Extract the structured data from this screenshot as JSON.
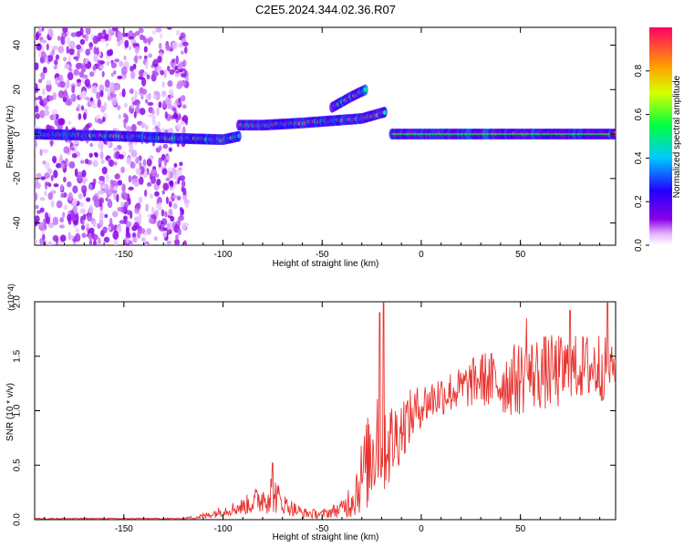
{
  "title": "C2E5.2024.344.02.36.R07",
  "chart_data": [
    {
      "type": "heatmap",
      "title": "C2E5.2024.344.02.36.R07",
      "xlabel": "Height of straight line (km)",
      "ylabel": "Frequency (Hz)",
      "xlim": [
        -195,
        98
      ],
      "ylim": [
        -50,
        48
      ],
      "xticks": [
        -150,
        -100,
        -50,
        0,
        50
      ],
      "yticks": [
        -40,
        -20,
        0,
        20,
        40
      ],
      "colorbar": {
        "label": "Normalized spectral amplitude",
        "range": [
          0.0,
          1.0
        ],
        "ticks": [
          0.0,
          0.2,
          0.4,
          0.6,
          0.8
        ]
      },
      "features": [
        {
          "name": "noise",
          "x_range": [
            -195,
            -118
          ],
          "freq_range": [
            -50,
            48
          ]
        },
        {
          "name": "main_band_lower",
          "points": [
            [
              -195,
              0
            ],
            [
              -150,
              -1
            ],
            [
              -120,
              -2
            ],
            [
              -100,
              -2.5
            ],
            [
              -92,
              -1
            ]
          ]
        },
        {
          "name": "main_band_rising",
          "points": [
            [
              -92,
              4
            ],
            [
              -80,
              4
            ],
            [
              -60,
              5
            ],
            [
              -45,
              6
            ],
            [
              -30,
              7
            ],
            [
              -18,
              10
            ]
          ]
        },
        {
          "name": "upper_branch",
          "points": [
            [
              -45,
              12
            ],
            [
              -35,
              17
            ],
            [
              -28,
              20
            ]
          ]
        },
        {
          "name": "stable_line",
          "points": [
            [
              -15,
              0
            ],
            [
              0,
              0
            ],
            [
              50,
              0
            ],
            [
              98,
              0
            ]
          ]
        }
      ]
    },
    {
      "type": "line",
      "xlabel": "Height of straight line (km)",
      "ylabel": "SNR (10 * v/v)",
      "exponent_label": "(x10^4)",
      "xlim": [
        -195,
        98
      ],
      "ylim": [
        0.0,
        2.0
      ],
      "xticks": [
        -150,
        -100,
        -50,
        0,
        50
      ],
      "yticks": [
        0.0,
        0.5,
        1.0,
        1.5,
        2.0
      ],
      "series": [
        {
          "name": "SNR",
          "color": "#e8332f",
          "envelope": {
            "x": [
              -195,
              -120,
              -110,
              -100,
              -90,
              -80,
              -75,
              -70,
              -60,
              -50,
              -40,
              -35,
              -30,
              -25,
              -22,
              -20,
              -15,
              -10,
              0,
              10,
              20,
              30,
              40,
              50,
              60,
              70,
              80,
              90,
              98
            ],
            "mean": [
              0.01,
              0.01,
              0.03,
              0.08,
              0.12,
              0.2,
              0.25,
              0.15,
              0.06,
              0.05,
              0.1,
              0.2,
              0.4,
              0.6,
              0.9,
              0.8,
              0.7,
              0.85,
              1.05,
              1.15,
              1.2,
              1.3,
              1.25,
              1.3,
              1.35,
              1.35,
              1.4,
              1.4,
              1.4
            ],
            "amp": [
              0.005,
              0.005,
              0.03,
              0.05,
              0.08,
              0.15,
              0.2,
              0.1,
              0.05,
              0.04,
              0.08,
              0.2,
              0.35,
              0.5,
              0.7,
              0.6,
              0.4,
              0.3,
              0.2,
              0.2,
              0.2,
              0.25,
              0.3,
              0.35,
              0.35,
              0.35,
              0.3,
              0.35,
              0.15
            ]
          },
          "peaks": [
            [
              -19,
              2.0
            ],
            [
              -75,
              0.52
            ],
            [
              94,
              2.0
            ],
            [
              -21,
              1.9
            ],
            [
              75,
              1.92
            ],
            [
              53,
              1.85
            ]
          ]
        }
      ]
    }
  ]
}
